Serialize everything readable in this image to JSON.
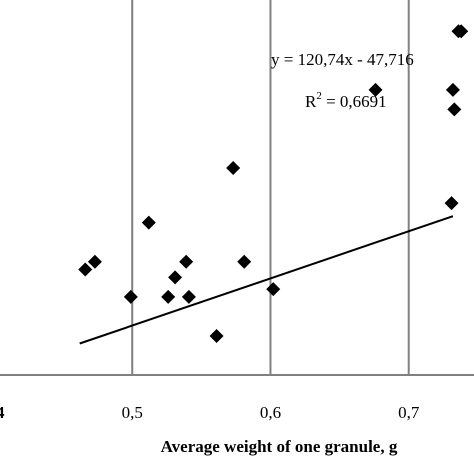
{
  "chart_data": {
    "type": "scatter",
    "title": "",
    "xlabel": "Average weight of one granule, g",
    "ylabel": "",
    "xlim": [
      0.4,
      0.74
    ],
    "ylim": [
      0,
      96
    ],
    "x_ticks": [
      {
        "value": 0.5,
        "label": "0,5"
      },
      {
        "value": 0.6,
        "label": "0,6"
      },
      {
        "value": 0.7,
        "label": "0,7"
      }
    ],
    "edge_tick_fragment": "4",
    "vertical_gridlines": true,
    "series": [
      {
        "marker": "diamond",
        "color": "#000000",
        "x": [
          0.466,
          0.473,
          0.499,
          0.512,
          0.526,
          0.531,
          0.539,
          0.541,
          0.561,
          0.573,
          0.581,
          0.602,
          0.676,
          0.731,
          0.732,
          0.733,
          0.736,
          0.738
        ],
        "y": [
          27,
          29,
          20,
          39,
          20,
          25,
          29,
          20,
          10,
          53,
          29,
          22,
          73,
          44,
          73,
          68,
          88,
          88
        ]
      }
    ],
    "trendline": {
      "slope": 120.74,
      "intercept": -47.716,
      "x_start": 0.462,
      "x_end": 0.732,
      "equation_text": "y = 120,74x - 47,716",
      "r2_prefix": "R",
      "r2_exponent": "2",
      "r2_suffix": " = 0,6691"
    }
  }
}
